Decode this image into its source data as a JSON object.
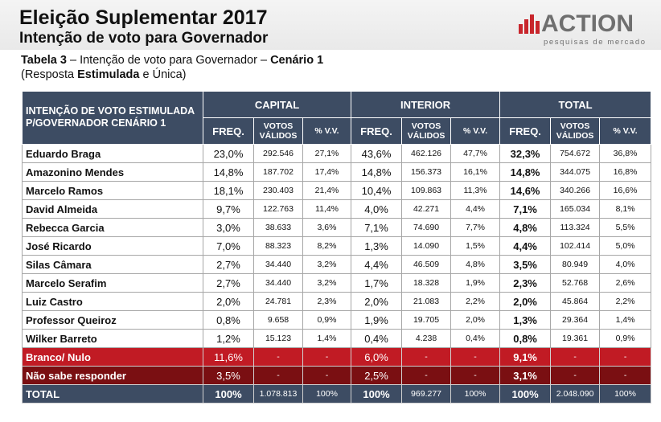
{
  "header": {
    "title": "Eleição Suplementar 2017",
    "subtitle": "Intenção de voto para Governador"
  },
  "logo": {
    "name": "ACTION",
    "tagline": "pesquisas de mercado",
    "accent_color": "#c8262c"
  },
  "caption": {
    "table_label": "Tabela 3",
    "dash_text": " – Intenção de voto para Governador – ",
    "scenario": "Cenário 1",
    "open_paren": "(Resposta ",
    "stimulated": "Estimulada",
    "rest": " e Única)"
  },
  "table": {
    "corner_header": "INTENÇÃO DE VOTO ESTIMULADA P/GOVERNADOR  CENÁRIO 1",
    "groups": [
      "CAPITAL",
      "INTERIOR",
      "TOTAL"
    ],
    "sub_headers": {
      "freq": "FREQ.",
      "votos_line1": "VOTOS",
      "votos_line2": "VÁLIDOS",
      "pct_vv": "% V.V."
    },
    "rows": [
      {
        "name": "Eduardo Braga",
        "c_freq": "23,0%",
        "c_votos": "292.546",
        "c_pct": "27,1%",
        "i_freq": "43,6%",
        "i_votos": "462.126",
        "i_pct": "47,7%",
        "t_freq": "32,3%",
        "t_votos": "754.672",
        "t_pct": "36,8%"
      },
      {
        "name": "Amazonino Mendes",
        "c_freq": "14,8%",
        "c_votos": "187.702",
        "c_pct": "17,4%",
        "i_freq": "14,8%",
        "i_votos": "156.373",
        "i_pct": "16,1%",
        "t_freq": "14,8%",
        "t_votos": "344.075",
        "t_pct": "16,8%"
      },
      {
        "name": "Marcelo Ramos",
        "c_freq": "18,1%",
        "c_votos": "230.403",
        "c_pct": "21,4%",
        "i_freq": "10,4%",
        "i_votos": "109.863",
        "i_pct": "11,3%",
        "t_freq": "14,6%",
        "t_votos": "340.266",
        "t_pct": "16,6%"
      },
      {
        "name": "David Almeida",
        "c_freq": "9,7%",
        "c_votos": "122.763",
        "c_pct": "11,4%",
        "i_freq": "4,0%",
        "i_votos": "42.271",
        "i_pct": "4,4%",
        "t_freq": "7,1%",
        "t_votos": "165.034",
        "t_pct": "8,1%"
      },
      {
        "name": "Rebecca Garcia",
        "c_freq": "3,0%",
        "c_votos": "38.633",
        "c_pct": "3,6%",
        "i_freq": "7,1%",
        "i_votos": "74.690",
        "i_pct": "7,7%",
        "t_freq": "4,8%",
        "t_votos": "113.324",
        "t_pct": "5,5%"
      },
      {
        "name": "José Ricardo",
        "c_freq": "7,0%",
        "c_votos": "88.323",
        "c_pct": "8,2%",
        "i_freq": "1,3%",
        "i_votos": "14.090",
        "i_pct": "1,5%",
        "t_freq": "4,4%",
        "t_votos": "102.414",
        "t_pct": "5,0%"
      },
      {
        "name": "Silas Câmara",
        "c_freq": "2,7%",
        "c_votos": "34.440",
        "c_pct": "3,2%",
        "i_freq": "4,4%",
        "i_votos": "46.509",
        "i_pct": "4,8%",
        "t_freq": "3,5%",
        "t_votos": "80.949",
        "t_pct": "4,0%"
      },
      {
        "name": "Marcelo Serafim",
        "c_freq": "2,7%",
        "c_votos": "34.440",
        "c_pct": "3,2%",
        "i_freq": "1,7%",
        "i_votos": "18.328",
        "i_pct": "1,9%",
        "t_freq": "2,3%",
        "t_votos": "52.768",
        "t_pct": "2,6%"
      },
      {
        "name": "Luiz Castro",
        "c_freq": "2,0%",
        "c_votos": "24.781",
        "c_pct": "2,3%",
        "i_freq": "2,0%",
        "i_votos": "21.083",
        "i_pct": "2,2%",
        "t_freq": "2,0%",
        "t_votos": "45.864",
        "t_pct": "2,2%"
      },
      {
        "name": "Professor Queiroz",
        "c_freq": "0,8%",
        "c_votos": "9.658",
        "c_pct": "0,9%",
        "i_freq": "1,9%",
        "i_votos": "19.705",
        "i_pct": "2,0%",
        "t_freq": "1,3%",
        "t_votos": "29.364",
        "t_pct": "1,4%"
      },
      {
        "name": "Wilker Barreto",
        "c_freq": "1,2%",
        "c_votos": "15.123",
        "c_pct": "1,4%",
        "i_freq": "0,4%",
        "i_votos": "4.238",
        "i_pct": "0,4%",
        "t_freq": "0,8%",
        "t_votos": "19.361",
        "t_pct": "0,9%"
      }
    ],
    "branco": {
      "name": "Branco/ Nulo",
      "c_freq": "11,6%",
      "c_votos": "-",
      "c_pct": "-",
      "i_freq": "6,0%",
      "i_votos": "-",
      "i_pct": "-",
      "t_freq": "9,1%",
      "t_votos": "-",
      "t_pct": "-"
    },
    "naosabe": {
      "name": "Não sabe responder",
      "c_freq": "3,5%",
      "c_votos": "-",
      "c_pct": "-",
      "i_freq": "2,5%",
      "i_votos": "-",
      "i_pct": "-",
      "t_freq": "3,1%",
      "t_votos": "-",
      "t_pct": "-"
    },
    "total": {
      "name": "TOTAL",
      "c_freq": "100%",
      "c_votos": "1.078.813",
      "c_pct": "100%",
      "i_freq": "100%",
      "i_votos": "969.277",
      "i_pct": "100%",
      "t_freq": "100%",
      "t_votos": "2.048.090",
      "t_pct": "100%"
    }
  },
  "colors": {
    "header_bg": "#3d4c63",
    "branco_bg": "#c11b24",
    "naosabe_bg": "#7a0f12"
  }
}
